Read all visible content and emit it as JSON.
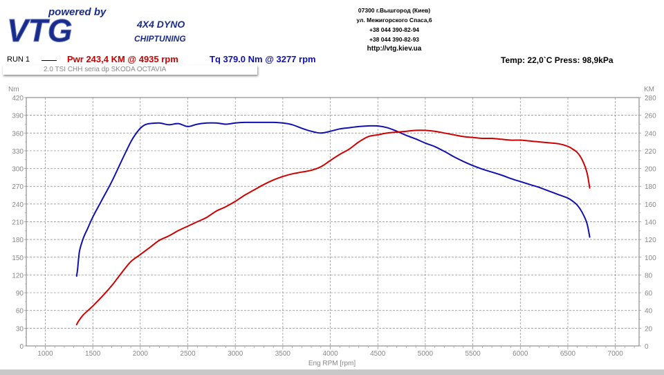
{
  "header": {
    "brand": {
      "tagline": "powered by",
      "name": "VTG",
      "product": "4X4 DYNO",
      "service": "CHIPTUNING"
    },
    "contact": [
      "07300 г.Вышгород (Киев)",
      "ул. Межигорского Спаса,6",
      "+38 044 390-82-94",
      "+38 044 390-82-93"
    ],
    "url": "http://vtg.kiev.ua",
    "run_label": "RUN 1",
    "power_summary": "Pwr  243,4 KM @ 4935 rpm",
    "torque_summary": "Tq  379.0 Nm @ 3277 rpm",
    "environment": "Temp: 22,0`C    Press: 98,9kPa",
    "car": "2.0 TSI CHH seria dp SKODA OCTAVIA"
  },
  "colors": {
    "power": "#d00000",
    "torque": "#1010b0",
    "grid": "#888888"
  },
  "chart_data": {
    "type": "line",
    "xlabel": "Eng RPM [rpm]",
    "ylabel_left": "Nm",
    "ylabel_right": "KM",
    "xlim": [
      800,
      7250
    ],
    "ylim_left": [
      0,
      420
    ],
    "ylim_right": [
      0,
      280
    ],
    "xticks": [
      1000,
      1500,
      2000,
      2500,
      3000,
      3500,
      4000,
      4500,
      5000,
      5500,
      6000,
      6500,
      7000
    ],
    "yticks_left": [
      0,
      30,
      60,
      90,
      120,
      150,
      180,
      210,
      240,
      270,
      300,
      330,
      360,
      390,
      420
    ],
    "yticks_right": [
      0,
      20,
      40,
      60,
      80,
      100,
      120,
      140,
      160,
      180,
      200,
      220,
      240,
      260,
      280
    ],
    "grid": true,
    "series": [
      {
        "axis": "left",
        "color": "#1010b0",
        "x": [
          1330,
          1340,
          1360,
          1400,
          1450,
          1500,
          1600,
          1700,
          1800,
          1900,
          1950,
          2000,
          2050,
          2100,
          2200,
          2300,
          2400,
          2500,
          2600,
          2700,
          2800,
          2900,
          3000,
          3100,
          3200,
          3300,
          3400,
          3500,
          3600,
          3700,
          3800,
          3900,
          4000,
          4100,
          4200,
          4300,
          4400,
          4500,
          4600,
          4700,
          4800,
          4900,
          5000,
          5100,
          5200,
          5300,
          5400,
          5500,
          5600,
          5700,
          5800,
          5900,
          6000,
          6100,
          6200,
          6300,
          6400,
          6500,
          6550,
          6600,
          6650,
          6700,
          6730
        ],
        "y": [
          118,
          130,
          160,
          182,
          200,
          218,
          248,
          278,
          312,
          345,
          358,
          368,
          374,
          376,
          377,
          374,
          376,
          371,
          375,
          377,
          377,
          375,
          377,
          378,
          378,
          378,
          378,
          377,
          374,
          368,
          363,
          360,
          363,
          367,
          369,
          371,
          372,
          372,
          369,
          363,
          356,
          350,
          343,
          337,
          329,
          320,
          312,
          305,
          299,
          294,
          289,
          283,
          278,
          273,
          268,
          262,
          256,
          250,
          245,
          238,
          226,
          208,
          184
        ]
      },
      {
        "axis": "right",
        "color": "#d00000",
        "x": [
          1330,
          1350,
          1400,
          1500,
          1600,
          1700,
          1800,
          1900,
          2000,
          2100,
          2200,
          2300,
          2400,
          2500,
          2600,
          2700,
          2800,
          2900,
          3000,
          3100,
          3200,
          3300,
          3400,
          3500,
          3600,
          3700,
          3800,
          3900,
          4000,
          4100,
          4200,
          4300,
          4400,
          4500,
          4600,
          4700,
          4800,
          4900,
          5000,
          5100,
          5200,
          5300,
          5400,
          5500,
          5600,
          5700,
          5800,
          5900,
          6000,
          6100,
          6200,
          6300,
          6400,
          6500,
          6550,
          6600,
          6650,
          6700,
          6730
        ],
        "y": [
          24,
          28,
          35,
          45,
          56,
          68,
          82,
          95,
          103,
          111,
          119,
          124,
          130,
          135,
          140,
          145,
          152,
          157,
          163,
          170,
          176,
          182,
          187,
          191,
          194,
          196,
          198,
          202,
          209,
          216,
          222,
          230,
          236,
          238,
          240,
          241,
          242,
          243,
          243,
          242,
          240,
          238,
          236,
          235,
          234,
          234,
          233,
          232,
          232,
          231,
          230,
          229,
          228,
          225,
          222,
          218,
          210,
          196,
          178
        ]
      }
    ]
  }
}
